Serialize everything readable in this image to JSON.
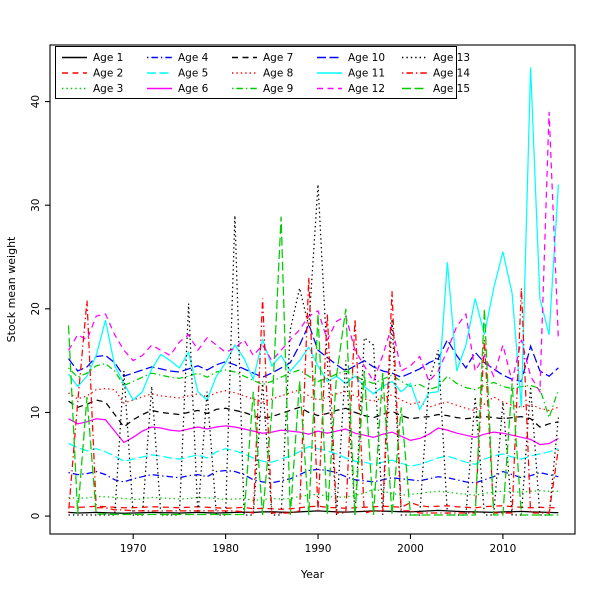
{
  "figure": {
    "xlabel": "Year",
    "ylabel": "Stock mean weight",
    "background": "#ffffff",
    "box_color": "#000000"
  },
  "chart_data": {
    "type": "line",
    "title": "",
    "xlabel": "Year",
    "ylabel": "Stock mean weight",
    "x_ticks": [
      1970,
      1980,
      1990,
      2000,
      2010
    ],
    "y_ticks": [
      0,
      10,
      20,
      30,
      40
    ],
    "xlim": [
      1961.0,
      2017.8
    ],
    "ylim": [
      -1.73,
      45.46
    ],
    "grid": false,
    "legend_position": "top-left",
    "legend_columns": 5,
    "x": [
      1963,
      1964,
      1965,
      1966,
      1967,
      1968,
      1969,
      1970,
      1971,
      1972,
      1973,
      1974,
      1975,
      1976,
      1977,
      1978,
      1979,
      1980,
      1981,
      1982,
      1983,
      1984,
      1985,
      1986,
      1987,
      1988,
      1989,
      1990,
      1991,
      1992,
      1993,
      1994,
      1995,
      1996,
      1997,
      1998,
      1999,
      2000,
      2001,
      2002,
      2003,
      2004,
      2005,
      2006,
      2007,
      2008,
      2009,
      2010,
      2011,
      2012,
      2013,
      2014,
      2015,
      2016
    ],
    "series": [
      {
        "name": "Age 1",
        "color": "#000000",
        "linestyle": "solid",
        "values": [
          0.35,
          0.3,
          0.32,
          0.35,
          0.33,
          0.3,
          0.28,
          0.3,
          0.32,
          0.35,
          0.33,
          0.32,
          0.3,
          0.32,
          0.35,
          0.33,
          0.3,
          0.32,
          0.35,
          0.38,
          0.35,
          0.4,
          0.42,
          0.38,
          0.35,
          0.4,
          0.45,
          0.5,
          0.45,
          0.4,
          0.38,
          0.42,
          0.45,
          0.5,
          0.48,
          0.45,
          0.42,
          0.4,
          0.45,
          0.5,
          0.55,
          0.5,
          0.45,
          0.42,
          0.4,
          0.38,
          0.35,
          0.4,
          0.42,
          0.45,
          0.4,
          0.38,
          0.35,
          0.33
        ]
      },
      {
        "name": "Age 2",
        "color": "#ff0000",
        "linestyle": "dashed",
        "values": [
          0.9,
          0.85,
          0.88,
          0.95,
          0.9,
          0.85,
          0.8,
          0.82,
          0.85,
          0.9,
          0.88,
          0.85,
          0.8,
          0.85,
          0.9,
          0.85,
          0.8,
          0.75,
          0.8,
          0.85,
          0.7,
          0.75,
          0.7,
          0.65,
          0.7,
          0.8,
          0.9,
          0.95,
          0.85,
          0.8,
          0.75,
          0.8,
          0.85,
          0.9,
          0.95,
          0.9,
          0.85,
          1.3,
          1.0,
          0.9,
          0.95,
          1.0,
          0.9,
          0.85,
          0.8,
          0.9,
          0.95,
          1.0,
          0.9,
          0.85,
          0.8,
          0.85,
          0.8,
          0.8
        ]
      },
      {
        "name": "Age 3",
        "color": "#00cc00",
        "linestyle": "dotted",
        "values": [
          1.8,
          1.7,
          1.75,
          1.9,
          1.85,
          1.8,
          1.7,
          1.6,
          1.65,
          1.8,
          1.75,
          1.7,
          1.65,
          1.7,
          1.8,
          1.75,
          1.7,
          1.6,
          1.65,
          1.7,
          1.5,
          1.6,
          1.7,
          1.65,
          1.7,
          1.9,
          2.0,
          2.1,
          1.9,
          1.8,
          1.85,
          2.0,
          2.2,
          2.6,
          2.4,
          2.2,
          2.0,
          2.1,
          2.2,
          2.3,
          2.4,
          2.3,
          2.2,
          2.1,
          2.0,
          2.2,
          2.3,
          2.4,
          2.35,
          2.3,
          2.4,
          2.45,
          2.4,
          2.4
        ]
      },
      {
        "name": "Age 4",
        "color": "#0000ff",
        "linestyle": "dashdot",
        "values": [
          4.2,
          4.0,
          4.1,
          4.3,
          4.0,
          3.5,
          3.3,
          3.6,
          3.8,
          4.0,
          3.9,
          3.8,
          3.7,
          3.9,
          4.0,
          3.8,
          4.3,
          4.4,
          4.3,
          4.0,
          3.5,
          3.3,
          3.2,
          3.4,
          3.6,
          4.0,
          4.4,
          4.5,
          4.4,
          4.2,
          3.8,
          3.5,
          3.4,
          3.3,
          3.5,
          3.7,
          3.6,
          3.5,
          3.4,
          3.6,
          3.8,
          3.7,
          3.5,
          3.3,
          3.2,
          3.5,
          3.8,
          4.3,
          4.0,
          3.7,
          3.9,
          4.2,
          4.0,
          3.8
        ]
      },
      {
        "name": "Age 5",
        "color": "#00ffff",
        "linestyle": "longdash",
        "values": [
          7.0,
          6.6,
          6.3,
          6.5,
          6.2,
          5.8,
          5.3,
          5.5,
          5.7,
          5.9,
          5.8,
          5.6,
          5.5,
          5.7,
          5.9,
          5.6,
          6.2,
          6.5,
          6.3,
          6.0,
          5.6,
          5.3,
          5.2,
          5.5,
          5.8,
          6.2,
          6.7,
          6.5,
          6.3,
          6.0,
          5.6,
          5.3,
          5.2,
          5.0,
          5.2,
          5.4,
          5.1,
          4.8,
          5.0,
          5.3,
          5.6,
          5.8,
          5.5,
          5.2,
          5.0,
          5.5,
          5.8,
          6.0,
          5.7,
          5.5,
          5.8,
          6.0,
          6.2,
          6.5
        ]
      },
      {
        "name": "Age 6",
        "color": "#ff00ff",
        "linestyle": "solid",
        "values": [
          9.4,
          8.9,
          9.1,
          9.4,
          9.3,
          8.2,
          7.1,
          7.6,
          8.2,
          8.6,
          8.5,
          8.3,
          8.2,
          8.4,
          8.6,
          8.4,
          8.6,
          8.7,
          8.6,
          8.4,
          8.2,
          8.0,
          8.1,
          8.3,
          8.2,
          8.1,
          7.9,
          8.2,
          8.0,
          8.2,
          8.4,
          8.0,
          7.8,
          7.6,
          7.9,
          8.1,
          7.7,
          7.3,
          7.5,
          7.9,
          8.5,
          8.3,
          8.0,
          7.8,
          7.6,
          7.9,
          8.1,
          8.0,
          7.8,
          7.6,
          7.4,
          6.9,
          7.0,
          7.5
        ]
      },
      {
        "name": "Age 7",
        "color": "#000000",
        "linestyle": "dashed",
        "values": [
          11.1,
          10.5,
          10.8,
          11.2,
          11.0,
          9.8,
          8.6,
          9.3,
          9.8,
          10.2,
          10.0,
          9.9,
          9.8,
          10.0,
          10.2,
          9.9,
          10.3,
          10.4,
          10.2,
          10.0,
          9.7,
          9.4,
          9.6,
          9.9,
          10.2,
          10.5,
          10.0,
          9.7,
          9.9,
          10.2,
          10.4,
          10.0,
          9.7,
          9.5,
          9.8,
          10.1,
          9.7,
          9.4,
          9.5,
          9.6,
          9.8,
          9.7,
          9.5,
          9.4,
          9.5,
          9.6,
          9.5,
          9.4,
          9.5,
          9.6,
          9.4,
          8.6,
          8.9,
          9.1
        ]
      },
      {
        "name": "Age 8",
        "color": "#ff0000",
        "linestyle": "dotted",
        "values": [
          11.9,
          11.3,
          11.6,
          12.2,
          12.3,
          12.2,
          10.9,
          11.2,
          11.5,
          11.8,
          11.6,
          11.5,
          11.4,
          11.6,
          11.8,
          11.5,
          11.9,
          12.1,
          11.9,
          11.6,
          11.3,
          11.0,
          11.3,
          11.6,
          11.9,
          12.2,
          11.6,
          11.2,
          11.5,
          11.8,
          12.0,
          11.6,
          11.3,
          11.1,
          11.4,
          11.7,
          11.2,
          10.8,
          11.0,
          10.5,
          10.8,
          11.0,
          10.7,
          10.4,
          10.2,
          10.8,
          11.5,
          11.0,
          10.7,
          10.5,
          10.8,
          10.4,
          10.2,
          10.5
        ]
      },
      {
        "name": "Age 9",
        "color": "#00cc00",
        "linestyle": "dashdot",
        "values": [
          14.3,
          13.4,
          13.8,
          14.5,
          14.7,
          14.0,
          12.6,
          13.0,
          13.4,
          13.8,
          13.6,
          13.4,
          13.3,
          13.5,
          13.8,
          13.4,
          13.9,
          14.1,
          13.9,
          13.5,
          13.1,
          12.7,
          13.0,
          13.4,
          13.8,
          14.1,
          13.5,
          13.0,
          13.3,
          13.7,
          14.0,
          13.5,
          13.1,
          12.8,
          13.2,
          13.6,
          13.0,
          12.5,
          12.7,
          12.2,
          12.5,
          13.5,
          12.8,
          12.4,
          12.2,
          12.6,
          12.9,
          12.5,
          12.3,
          12.5,
          12.6,
          12.3,
          9.5,
          12.2
        ]
      },
      {
        "name": "Age 10",
        "color": "#0000ff",
        "linestyle": "longdash",
        "values": [
          15.2,
          14.0,
          14.4,
          15.4,
          15.5,
          14.8,
          13.5,
          13.8,
          14.1,
          14.4,
          14.2,
          14.0,
          13.9,
          14.2,
          14.5,
          14.1,
          14.6,
          14.9,
          14.6,
          14.2,
          13.8,
          13.4,
          13.8,
          14.3,
          14.8,
          16.5,
          18.5,
          16.0,
          15.3,
          14.6,
          14.0,
          14.5,
          15.0,
          14.4,
          14.0,
          13.8,
          13.4,
          13.8,
          14.2,
          14.8,
          15.2,
          17.0,
          15.5,
          14.3,
          15.8,
          14.8,
          14.2,
          13.6,
          13.2,
          13.0,
          16.4,
          14.0,
          13.5,
          14.3
        ]
      },
      {
        "name": "Age 11",
        "color": "#00ffff",
        "linestyle": "solid",
        "values": [
          13.7,
          12.5,
          13.5,
          15.5,
          18.9,
          14.5,
          12.8,
          11.2,
          12.0,
          14.2,
          15.6,
          15.0,
          14.3,
          15.8,
          12.0,
          11.2,
          13.5,
          14.8,
          16.5,
          15.2,
          13.2,
          17.0,
          14.5,
          15.5,
          14.0,
          15.0,
          16.3,
          14.5,
          13.0,
          13.5,
          12.8,
          13.5,
          12.5,
          11.8,
          12.5,
          13.0,
          12.0,
          12.8,
          10.3,
          11.9,
          12.0,
          24.5,
          14.0,
          16.5,
          21.0,
          17.5,
          22.0,
          25.5,
          21.5,
          10.5,
          43.3,
          21.0,
          17.5,
          32.0
        ]
      },
      {
        "name": "Age 12",
        "color": "#ff00ff",
        "linestyle": "dashed",
        "values": [
          16.0,
          17.5,
          17.0,
          19.3,
          19.5,
          17.5,
          16.0,
          15.0,
          15.5,
          16.5,
          16.0,
          15.5,
          16.8,
          17.5,
          16.0,
          17.2,
          16.5,
          15.8,
          16.2,
          17.0,
          15.5,
          16.5,
          15.0,
          16.0,
          17.0,
          18.0,
          19.3,
          19.8,
          17.0,
          18.8,
          19.3,
          16.0,
          14.5,
          13.0,
          15.5,
          18.4,
          14.0,
          14.5,
          15.4,
          13.0,
          14.0,
          16.0,
          18.3,
          19.5,
          14.0,
          15.5,
          13.5,
          16.5,
          13.0,
          17.0,
          13.5,
          12.0,
          39.0,
          17.0
        ]
      },
      {
        "name": "Age 13",
        "color": "#000000",
        "linestyle": "dotted",
        "values": [
          0.1,
          0.1,
          0.1,
          0.1,
          0.1,
          0.1,
          14.0,
          0.1,
          0.1,
          12.5,
          0.1,
          0.1,
          0.1,
          20.5,
          0.1,
          12.0,
          0.1,
          0.1,
          29.0,
          0.1,
          0.1,
          13.0,
          0.1,
          0.1,
          18.0,
          22.0,
          18.3,
          32.0,
          15.0,
          0.1,
          15.0,
          0.1,
          17.2,
          16.5,
          0.1,
          19.0,
          0.1,
          0.1,
          0.1,
          13.0,
          16.0,
          0.1,
          0.1,
          0.1,
          11.5,
          0.1,
          0.1,
          11.0,
          0.1,
          0.1,
          12.5,
          0.1,
          0.1,
          9.5
        ]
      },
      {
        "name": "Age 14",
        "color": "#ff0000",
        "linestyle": "dashdot",
        "values": [
          0.3,
          11.0,
          20.8,
          0.8,
          0.8,
          0.6,
          0.6,
          0.5,
          0.5,
          0.5,
          0.5,
          0.5,
          0.5,
          0.5,
          0.5,
          0.5,
          0.5,
          0.5,
          0.5,
          0.4,
          0.3,
          21.0,
          0.3,
          0.3,
          0.3,
          0.5,
          23.0,
          0.5,
          19.5,
          0.3,
          0.3,
          19.0,
          0.3,
          0.5,
          0.5,
          21.7,
          0.5,
          0.5,
          0.3,
          0.3,
          0.3,
          0.3,
          0.3,
          0.3,
          0.3,
          17.0,
          0.3,
          0.3,
          0.3,
          22.0,
          0.3,
          0.3,
          0.3,
          6.5
        ]
      },
      {
        "name": "Age 15",
        "color": "#00cc00",
        "linestyle": "longdash",
        "values": [
          18.4,
          0.2,
          11.5,
          0.2,
          0.2,
          0.15,
          0.15,
          0.15,
          0.15,
          0.15,
          0.15,
          0.15,
          0.15,
          0.15,
          0.15,
          0.15,
          0.15,
          0.15,
          0.15,
          0.15,
          12.0,
          0.1,
          10.0,
          28.9,
          0.1,
          13.0,
          0.1,
          19.5,
          0.1,
          13.5,
          20.0,
          0.1,
          14.0,
          0.1,
          13.8,
          0.1,
          10.5,
          0.1,
          0.1,
          0.1,
          0.1,
          0.1,
          0.1,
          0.1,
          0.1,
          20.0,
          0.1,
          0.1,
          12.8,
          0.1,
          0.1,
          0.1,
          0.1,
          0.1
        ]
      }
    ]
  }
}
